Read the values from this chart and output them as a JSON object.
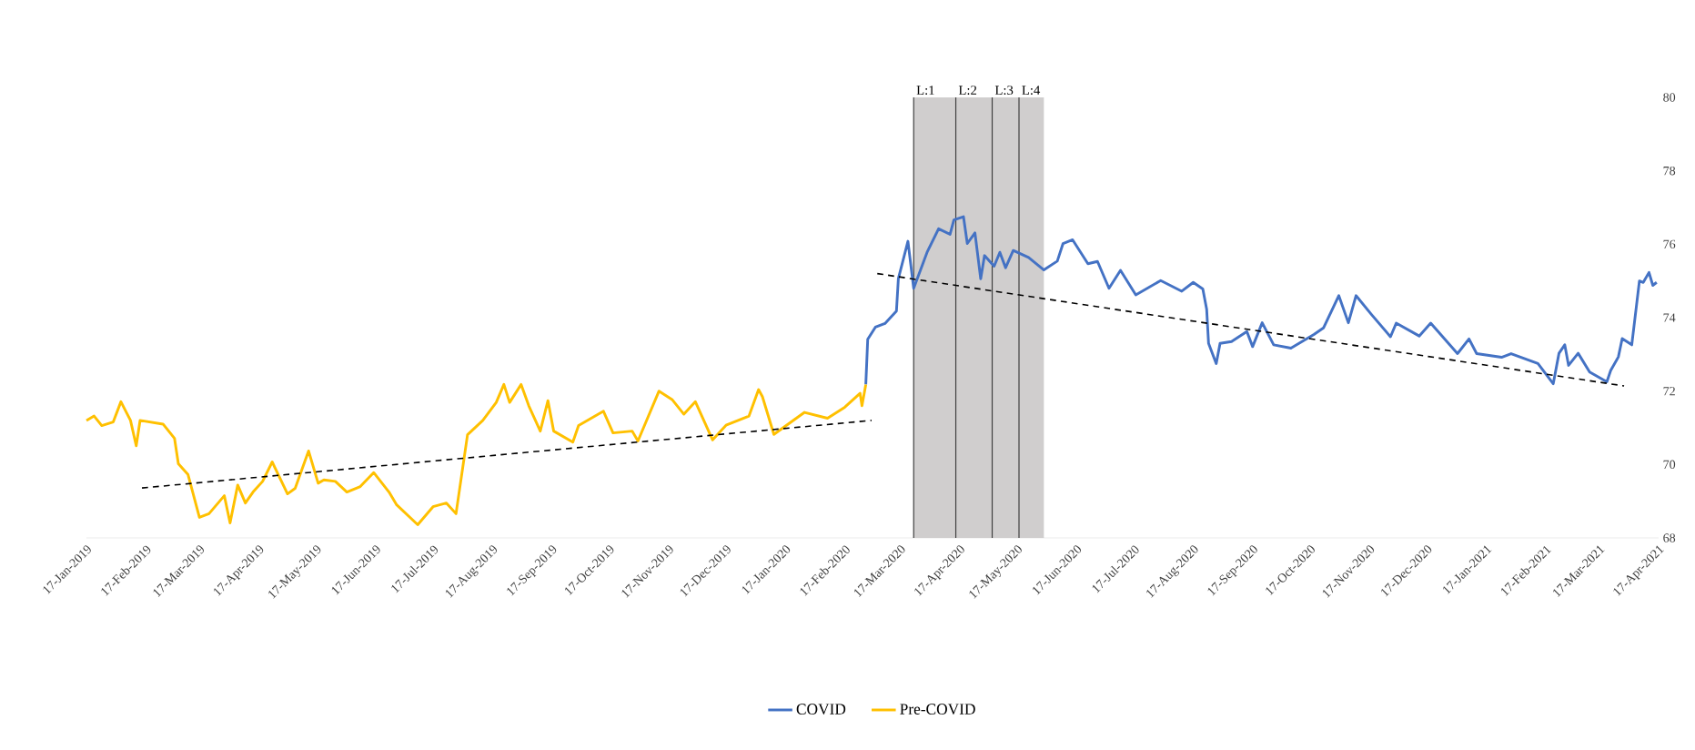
{
  "chart_data": {
    "type": "line",
    "legend": "bottom",
    "xlim": [
      "2019-01-17",
      "2021-04-17"
    ],
    "xticks": [
      {
        "value": "2019-01-17",
        "label": "17-Jan-2019"
      },
      {
        "value": "2019-02-17",
        "label": "17-Feb-2019"
      },
      {
        "value": "2019-03-17",
        "label": "17-Mar-2019"
      },
      {
        "value": "2019-04-17",
        "label": "17-Apr-2019"
      },
      {
        "value": "2019-05-17",
        "label": "17-May-2019"
      },
      {
        "value": "2019-06-17",
        "label": "17-Jun-2019"
      },
      {
        "value": "2019-07-17",
        "label": "17-Jul-2019"
      },
      {
        "value": "2019-08-17",
        "label": "17-Aug-2019"
      },
      {
        "value": "2019-09-17",
        "label": "17-Sep-2019"
      },
      {
        "value": "2019-10-17",
        "label": "17-Oct-2019"
      },
      {
        "value": "2019-11-17",
        "label": "17-Nov-2019"
      },
      {
        "value": "2019-12-17",
        "label": "17-Dec-2019"
      },
      {
        "value": "2020-01-17",
        "label": "17-Jan-2020"
      },
      {
        "value": "2020-02-17",
        "label": "17-Feb-2020"
      },
      {
        "value": "2020-03-17",
        "label": "17-Mar-2020"
      },
      {
        "value": "2020-04-17",
        "label": "17-Apr-2020"
      },
      {
        "value": "2020-05-17",
        "label": "17-May-2020"
      },
      {
        "value": "2020-06-17",
        "label": "17-Jun-2020"
      },
      {
        "value": "2020-07-17",
        "label": "17-Jul-2020"
      },
      {
        "value": "2020-08-17",
        "label": "17-Aug-2020"
      },
      {
        "value": "2020-09-17",
        "label": "17-Sep-2020"
      },
      {
        "value": "2020-10-17",
        "label": "17-Oct-2020"
      },
      {
        "value": "2020-11-17",
        "label": "17-Nov-2020"
      },
      {
        "value": "2020-12-17",
        "label": "17-Dec-2020"
      },
      {
        "value": "2021-01-17",
        "label": "17-Jan-2021"
      },
      {
        "value": "2021-02-17",
        "label": "17-Feb-2021"
      },
      {
        "value": "2021-03-17",
        "label": "17-Mar-2021"
      },
      {
        "value": "2021-04-17",
        "label": "17-Apr-2021"
      }
    ],
    "ylim": [
      68,
      80
    ],
    "yticks": [
      68,
      70,
      72,
      74,
      76,
      78,
      80
    ],
    "bands": [
      {
        "axis": "x",
        "from": "2020-03-24",
        "to": "2020-05-31",
        "color": "#d0cece"
      }
    ],
    "ref_lines": [
      {
        "axis": "x",
        "value": "2020-03-24",
        "label": "L:1",
        "color": "#404040"
      },
      {
        "axis": "x",
        "value": "2020-04-15",
        "label": "L:2",
        "color": "#404040"
      },
      {
        "axis": "x",
        "value": "2020-05-04",
        "label": "L:3",
        "color": "#404040"
      },
      {
        "axis": "x",
        "value": "2020-05-18",
        "label": "L:4",
        "color": "#404040"
      }
    ],
    "series": [
      {
        "name": "COVID",
        "color": "#4472c4",
        "line_style": "solid",
        "x": [
          "2020-02-28",
          "2020-02-29",
          "2020-03-04",
          "2020-03-09",
          "2020-03-15",
          "2020-03-16",
          "2020-03-21",
          "2020-03-24",
          "2020-03-31",
          "2020-04-06",
          "2020-04-12",
          "2020-04-14",
          "2020-04-19",
          "2020-04-21",
          "2020-04-25",
          "2020-04-28",
          "2020-04-30",
          "2020-05-05",
          "2020-05-08",
          "2020-05-11",
          "2020-05-15",
          "2020-05-23",
          "2020-05-31",
          "2020-06-07",
          "2020-06-10",
          "2020-06-15",
          "2020-06-23",
          "2020-06-28",
          "2020-07-04",
          "2020-07-10",
          "2020-07-18",
          "2020-07-31",
          "2020-08-11",
          "2020-08-17",
          "2020-08-22",
          "2020-08-24",
          "2020-08-25",
          "2020-08-29",
          "2020-08-31",
          "2020-09-06",
          "2020-09-14",
          "2020-09-17",
          "2020-09-22",
          "2020-09-28",
          "2020-10-07",
          "2020-10-19",
          "2020-10-24",
          "2020-11-01",
          "2020-11-06",
          "2020-11-10",
          "2020-11-18",
          "2020-11-28",
          "2020-12-01",
          "2020-12-13",
          "2020-12-19",
          "2021-01-02",
          "2021-01-08",
          "2021-01-12",
          "2021-01-25",
          "2021-01-30",
          "2021-02-13",
          "2021-02-21",
          "2021-02-24",
          "2021-02-27",
          "2021-03-01",
          "2021-03-06",
          "2021-03-12",
          "2021-03-21",
          "2021-03-23",
          "2021-03-27",
          "2021-03-29",
          "2021-04-03",
          "2021-04-07",
          "2021-04-09",
          "2021-04-12",
          "2021-04-14",
          "2021-04-16"
        ],
        "values": [
          72.18,
          73.41,
          73.74,
          73.84,
          74.18,
          75.06,
          76.08,
          74.8,
          75.78,
          76.42,
          76.27,
          76.66,
          76.75,
          76.02,
          76.31,
          75.06,
          75.69,
          75.4,
          75.78,
          75.36,
          75.83,
          75.64,
          75.3,
          75.54,
          76.02,
          76.12,
          75.47,
          75.53,
          74.8,
          75.29,
          74.62,
          75.01,
          74.72,
          74.96,
          74.78,
          74.23,
          73.3,
          72.75,
          73.3,
          73.35,
          73.62,
          73.21,
          73.86,
          73.26,
          73.17,
          73.54,
          73.72,
          74.6,
          73.86,
          74.6,
          74.09,
          73.48,
          73.85,
          73.5,
          73.85,
          73.02,
          73.42,
          73.02,
          72.92,
          73.02,
          72.75,
          72.2,
          73.03,
          73.26,
          72.7,
          73.03,
          72.52,
          72.25,
          72.56,
          72.93,
          73.43,
          73.26,
          75.0,
          74.96,
          75.23,
          74.88,
          74.96
        ]
      },
      {
        "name": "Pre-COVID",
        "color": "#ffc000",
        "line_style": "solid",
        "x": [
          "2019-01-17",
          "2019-01-21",
          "2019-01-25",
          "2019-01-31",
          "2019-02-04",
          "2019-02-09",
          "2019-02-12",
          "2019-02-14",
          "2019-02-26",
          "2019-03-04",
          "2019-03-06",
          "2019-03-11",
          "2019-03-17",
          "2019-03-22",
          "2019-03-30",
          "2019-04-02",
          "2019-04-06",
          "2019-04-10",
          "2019-04-14",
          "2019-04-19",
          "2019-04-24",
          "2019-05-02",
          "2019-05-06",
          "2019-05-13",
          "2019-05-18",
          "2019-05-21",
          "2019-05-27",
          "2019-06-02",
          "2019-06-09",
          "2019-06-16",
          "2019-06-24",
          "2019-06-28",
          "2019-07-09",
          "2019-07-17",
          "2019-07-24",
          "2019-07-29",
          "2019-08-04",
          "2019-08-12",
          "2019-08-19",
          "2019-08-23",
          "2019-08-26",
          "2019-09-01",
          "2019-09-05",
          "2019-09-11",
          "2019-09-15",
          "2019-09-18",
          "2019-09-28",
          "2019-10-01",
          "2019-10-14",
          "2019-10-19",
          "2019-10-29",
          "2019-11-01",
          "2019-11-12",
          "2019-11-19",
          "2019-11-25",
          "2019-12-01",
          "2019-12-10",
          "2019-12-17",
          "2019-12-29",
          "2020-01-03",
          "2020-01-05",
          "2020-01-11",
          "2020-01-27",
          "2020-02-08",
          "2020-02-17",
          "2020-02-25",
          "2020-02-26",
          "2020-02-28"
        ],
        "values": [
          71.2,
          71.32,
          71.06,
          71.16,
          71.71,
          71.2,
          70.51,
          71.2,
          71.1,
          70.71,
          70.02,
          69.73,
          68.56,
          68.66,
          69.15,
          68.41,
          69.44,
          68.95,
          69.25,
          69.54,
          70.07,
          69.2,
          69.35,
          70.37,
          69.49,
          69.58,
          69.54,
          69.25,
          69.4,
          69.78,
          69.25,
          68.9,
          68.36,
          68.85,
          68.95,
          68.66,
          70.81,
          71.2,
          71.69,
          72.18,
          71.69,
          72.18,
          71.6,
          70.91,
          71.74,
          70.91,
          70.61,
          71.06,
          71.45,
          70.86,
          70.91,
          70.64,
          72.0,
          71.76,
          71.37,
          71.71,
          70.67,
          71.07,
          71.32,
          72.04,
          71.85,
          70.82,
          71.42,
          71.26,
          71.56,
          71.94,
          71.6,
          72.18
        ]
      },
      {
        "color": "#000000",
        "line_style": "dashed",
        "x": [
          "2019-02-15",
          "2020-03-02"
        ],
        "values": [
          69.36,
          71.2
        ]
      },
      {
        "color": "#000000",
        "line_style": "dashed",
        "x": [
          "2020-03-05",
          "2021-03-30"
        ],
        "values": [
          75.2,
          72.14
        ]
      }
    ]
  }
}
